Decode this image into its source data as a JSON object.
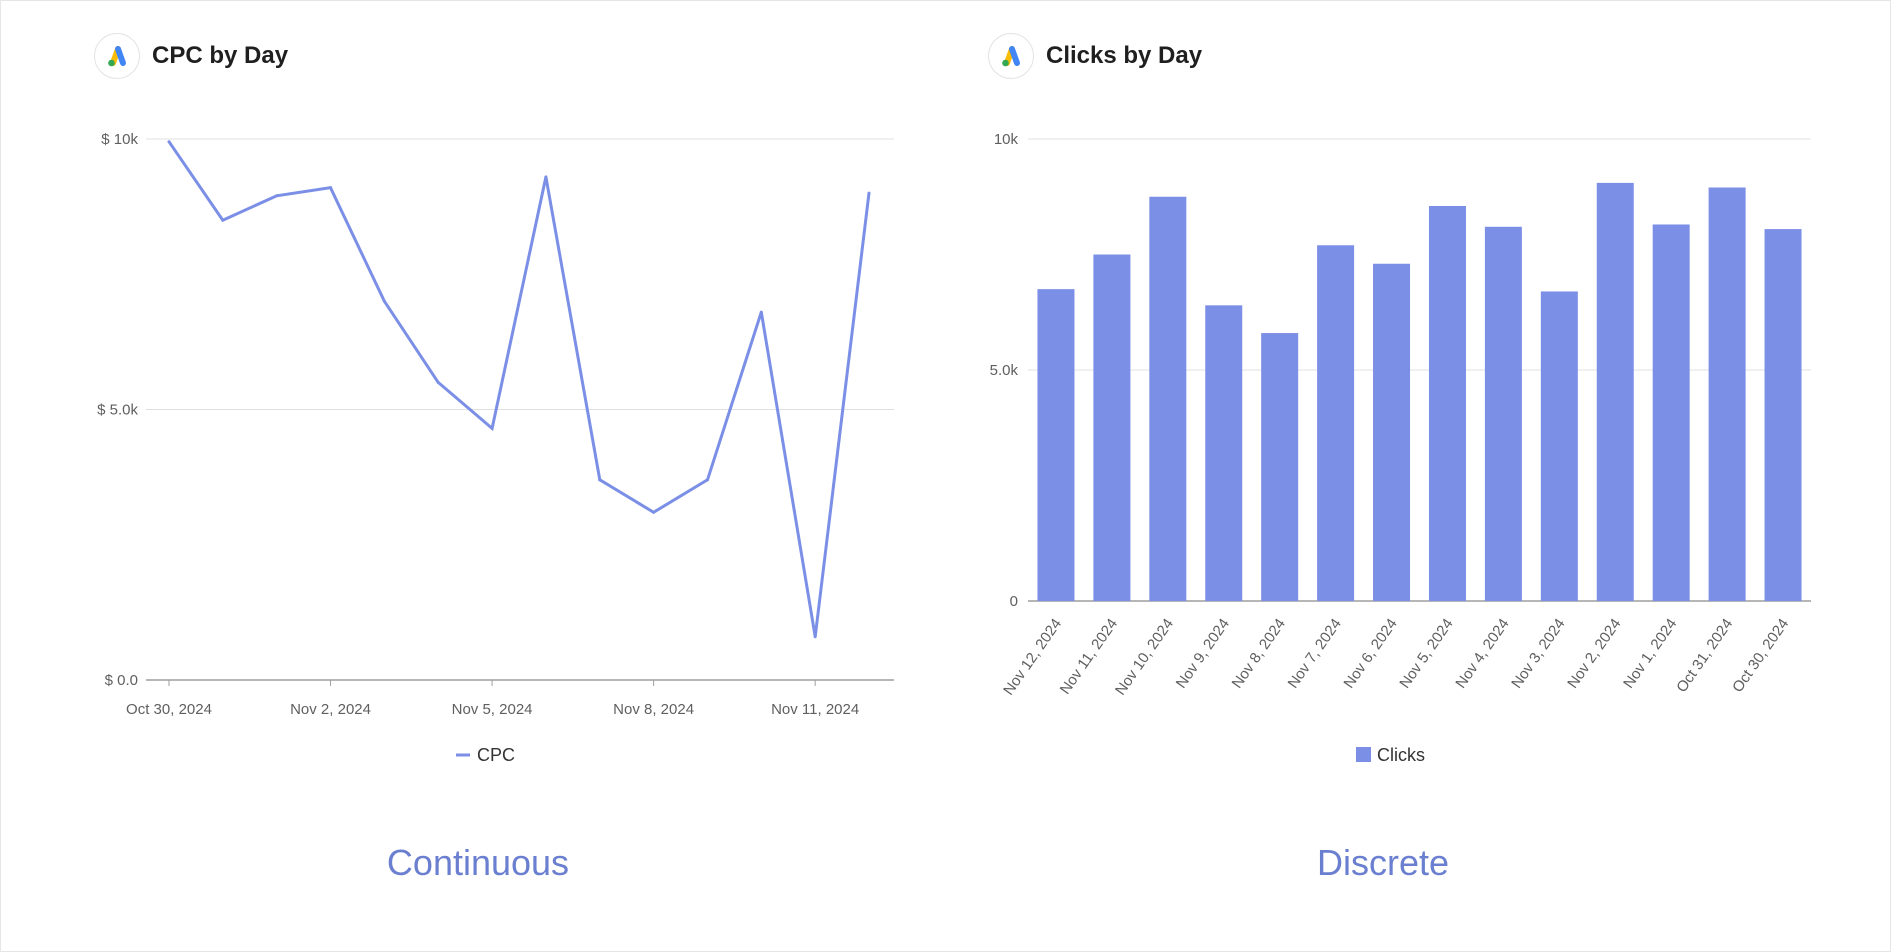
{
  "colors": {
    "series": "#7b8fe6",
    "line": "#7b8fe6",
    "grid": "#e0e0e0",
    "axis": "#9e9e9e",
    "caption": "#6a7fcf"
  },
  "icon": "google-ads-logo",
  "left_panel": {
    "title": "CPC by Day",
    "caption": "Continuous"
  },
  "right_panel": {
    "title": "Clicks by Day",
    "caption": "Discrete"
  },
  "chart_data": [
    {
      "type": "line",
      "title": "CPC by Day",
      "x": [
        "Oct 30, 2024",
        "Oct 31, 2024",
        "Nov 1, 2024",
        "Nov 2, 2024",
        "Nov 3, 2024",
        "Nov 4, 2024",
        "Nov 5, 2024",
        "Nov 6, 2024",
        "Nov 7, 2024",
        "Nov 8, 2024",
        "Nov 9, 2024",
        "Nov 10, 2024",
        "Nov 11, 2024",
        "Nov 12, 2024"
      ],
      "x_tick_labels": [
        "Oct 30, 2024",
        "Nov 2, 2024",
        "Nov 5, 2024",
        "Nov 8, 2024",
        "Nov 11, 2024"
      ],
      "series": [
        {
          "name": "CPC",
          "values": [
            9950,
            8500,
            8950,
            9100,
            7000,
            5500,
            4650,
            9300,
            3700,
            3100,
            3700,
            6800,
            800,
            9000
          ]
        }
      ],
      "ylim": [
        0,
        10000
      ],
      "y_ticks": [
        0,
        5000,
        10000
      ],
      "y_tick_labels": [
        "$ 0.0",
        "$ 5.0k",
        "$ 10k"
      ],
      "legend": {
        "position": "bottom",
        "entries": [
          "CPC"
        ]
      },
      "grid": true
    },
    {
      "type": "bar",
      "title": "Clicks by Day",
      "categories": [
        "Nov 12, 2024",
        "Nov 11, 2024",
        "Nov 10, 2024",
        "Nov 9, 2024",
        "Nov 8, 2024",
        "Nov 7, 2024",
        "Nov 6, 2024",
        "Nov 5, 2024",
        "Nov 4, 2024",
        "Nov 3, 2024",
        "Nov 2, 2024",
        "Nov 1, 2024",
        "Oct 31, 2024",
        "Oct 30, 2024"
      ],
      "series": [
        {
          "name": "Clicks",
          "values": [
            6750,
            7500,
            8750,
            6400,
            5800,
            7700,
            7300,
            8550,
            8100,
            6700,
            9050,
            8150,
            8950,
            8050
          ]
        }
      ],
      "ylim": [
        0,
        10000
      ],
      "y_ticks": [
        0,
        5000,
        10000
      ],
      "y_tick_labels": [
        "0",
        "5.0k",
        "10k"
      ],
      "legend": {
        "position": "bottom",
        "entries": [
          "Clicks"
        ]
      },
      "grid": true
    }
  ]
}
